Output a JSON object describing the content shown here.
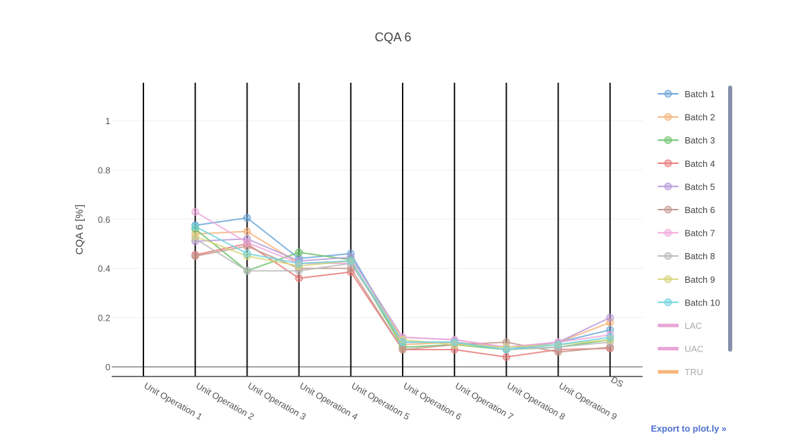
{
  "chart_data": {
    "type": "line",
    "title": "CQA 6",
    "ylabel": "CQA 6 [%']",
    "xlabel": "",
    "ylim": [
      -0.04,
      1.16
    ],
    "yticks": [
      0,
      0.2,
      0.4,
      0.6,
      0.8,
      1
    ],
    "ytick_labels": [
      "0",
      "0.2",
      "0.4",
      "0.6",
      "0.8",
      "1"
    ],
    "categories": [
      "Unit Operation 1",
      "Unit Operation 2",
      "Unit Operation 3",
      "Unit Operation 4",
      "Unit Operation 5",
      "Unit Operation 6",
      "Unit Operation 7",
      "Unit Operation 8",
      "Unit Operation 9",
      "DS"
    ],
    "grid": true,
    "legend_placement": "right",
    "series": [
      {
        "name": "Batch 1",
        "color": "#6fa7d8",
        "values": [
          null,
          0.575,
          0.605,
          0.44,
          0.46,
          0.1,
          0.1,
          0.07,
          0.1,
          0.15
        ]
      },
      {
        "name": "Batch 2",
        "color": "#f8b37a",
        "values": [
          null,
          0.54,
          0.55,
          0.42,
          0.43,
          0.09,
          0.1,
          0.08,
          0.1,
          0.18
        ]
      },
      {
        "name": "Batch 3",
        "color": "#6fc36f",
        "values": [
          null,
          0.56,
          0.39,
          0.465,
          0.435,
          0.08,
          0.09,
          0.07,
          0.08,
          0.11
        ]
      },
      {
        "name": "Batch 4",
        "color": "#e87b7b",
        "values": [
          null,
          0.455,
          0.5,
          0.36,
          0.385,
          0.07,
          0.07,
          0.04,
          0.07,
          0.075
        ]
      },
      {
        "name": "Batch 5",
        "color": "#b89ad8",
        "values": [
          null,
          0.51,
          0.52,
          0.43,
          0.445,
          0.12,
          0.11,
          0.08,
          0.1,
          0.2
        ]
      },
      {
        "name": "Batch 6",
        "color": "#c49a8e",
        "values": [
          null,
          0.45,
          0.49,
          0.4,
          0.4,
          0.07,
          0.09,
          0.1,
          0.06,
          0.08
        ]
      },
      {
        "name": "Batch 7",
        "color": "#f0a8da",
        "values": [
          null,
          0.63,
          0.505,
          0.42,
          0.42,
          0.12,
          0.11,
          0.08,
          0.1,
          0.13
        ]
      },
      {
        "name": "Batch 8",
        "color": "#bbbbbb",
        "values": [
          null,
          0.52,
          0.39,
          0.39,
          0.42,
          0.1,
          0.1,
          0.07,
          0.08,
          0.1
        ]
      },
      {
        "name": "Batch 9",
        "color": "#d6d67a",
        "values": [
          null,
          0.53,
          0.45,
          0.41,
          0.43,
          0.11,
          0.09,
          0.08,
          0.09,
          0.11
        ]
      },
      {
        "name": "Batch 10",
        "color": "#6fd3e0",
        "values": [
          null,
          0.57,
          0.46,
          0.42,
          0.43,
          0.1,
          0.1,
          0.07,
          0.09,
          0.12
        ]
      }
    ],
    "reference_lines": [
      {
        "name": "LAC",
        "color": "#e9a5d6"
      },
      {
        "name": "UAC",
        "color": "#e9a5d6"
      },
      {
        "name": "TRU",
        "color": "#f8b37a"
      }
    ]
  },
  "export_link": {
    "label": "Export to plot.ly »"
  }
}
